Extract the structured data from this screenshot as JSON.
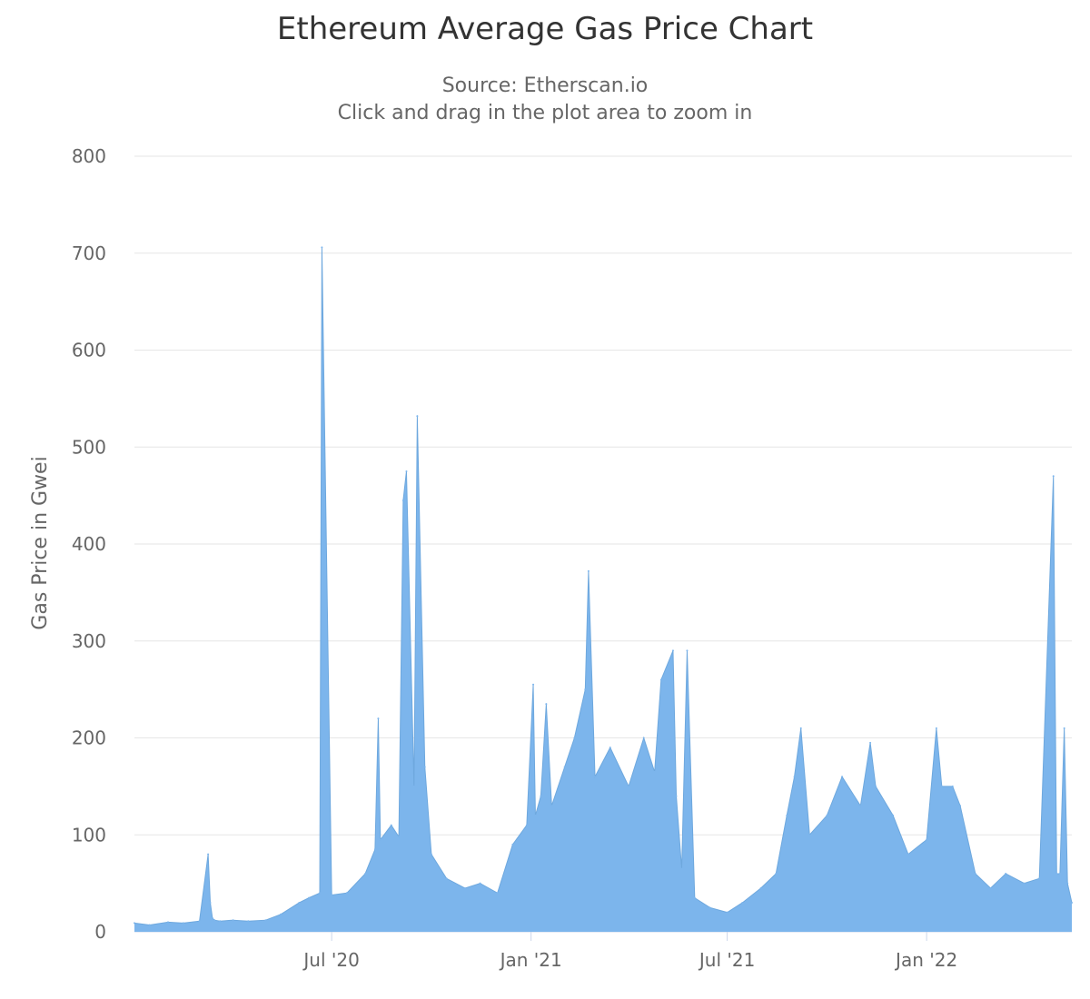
{
  "chart_data": {
    "type": "area",
    "title": "Ethereum Average Gas Price Chart",
    "subtitle": "Source: Etherscan.io",
    "subtitle2": "Click and drag in the plot area to zoom in",
    "xlabel": "",
    "ylabel": "Gas Price in Gwei",
    "ylim": [
      0,
      800
    ],
    "y_ticks": [
      0,
      100,
      200,
      300,
      400,
      500,
      600,
      700,
      800
    ],
    "x_range": [
      "2020-01-01",
      "2022-05-15"
    ],
    "x_ticks": [
      {
        "date": "2020-07-01",
        "label": "Jul '20"
      },
      {
        "date": "2021-01-01",
        "label": "Jan '21"
      },
      {
        "date": "2021-07-01",
        "label": "Jul '21"
      },
      {
        "date": "2022-01-01",
        "label": "Jan '22"
      }
    ],
    "grid": true,
    "legend": "none",
    "color": "#7cb5ec",
    "series": [
      {
        "x": [
          "2020-01-01",
          "2020-01-15",
          "2020-02-01",
          "2020-02-15",
          "2020-03-01",
          "2020-03-09",
          "2020-03-11",
          "2020-03-13",
          "2020-03-15",
          "2020-03-20",
          "2020-04-01",
          "2020-04-15",
          "2020-05-01",
          "2020-05-15",
          "2020-06-01",
          "2020-06-10",
          "2020-06-20",
          "2020-06-22",
          "2020-07-01",
          "2020-07-15",
          "2020-08-01",
          "2020-08-10",
          "2020-08-13",
          "2020-08-15",
          "2020-08-25",
          "2020-09-01",
          "2020-09-05",
          "2020-09-08",
          "2020-09-15",
          "2020-09-18",
          "2020-09-25",
          "2020-10-01",
          "2020-10-15",
          "2020-11-01",
          "2020-11-15",
          "2020-12-01",
          "2020-12-15",
          "2020-12-28",
          "2021-01-03",
          "2021-01-05",
          "2021-01-10",
          "2021-01-15",
          "2021-01-20",
          "2021-02-01",
          "2021-02-10",
          "2021-02-20",
          "2021-02-23",
          "2021-03-01",
          "2021-03-15",
          "2021-04-01",
          "2021-04-15",
          "2021-04-25",
          "2021-05-01",
          "2021-05-12",
          "2021-05-15",
          "2021-05-20",
          "2021-05-25",
          "2021-06-01",
          "2021-06-15",
          "2021-07-01",
          "2021-07-15",
          "2021-08-01",
          "2021-08-15",
          "2021-08-25",
          "2021-09-01",
          "2021-09-07",
          "2021-09-15",
          "2021-10-01",
          "2021-10-15",
          "2021-11-01",
          "2021-11-10",
          "2021-11-15",
          "2021-12-01",
          "2021-12-15",
          "2022-01-01",
          "2022-01-10",
          "2022-01-15",
          "2022-01-25",
          "2022-02-01",
          "2022-02-15",
          "2022-03-01",
          "2022-03-15",
          "2022-04-01",
          "2022-04-15",
          "2022-04-28",
          "2022-05-01",
          "2022-05-04",
          "2022-05-08",
          "2022-05-11",
          "2022-05-15"
        ],
        "y": [
          9,
          7,
          10,
          9,
          11,
          80,
          30,
          14,
          12,
          11,
          12,
          11,
          12,
          18,
          30,
          35,
          40,
          706,
          38,
          40,
          60,
          85,
          220,
          95,
          110,
          98,
          445,
          475,
          150,
          532,
          170,
          80,
          55,
          45,
          50,
          40,
          90,
          110,
          255,
          120,
          140,
          235,
          130,
          170,
          200,
          250,
          372,
          160,
          190,
          150,
          200,
          165,
          260,
          290,
          140,
          65,
          290,
          35,
          25,
          20,
          30,
          45,
          60,
          120,
          160,
          210,
          100,
          120,
          160,
          130,
          195,
          150,
          120,
          80,
          95,
          210,
          150,
          150,
          130,
          60,
          45,
          60,
          50,
          55,
          470,
          60,
          60,
          210,
          50,
          30
        ]
      }
    ]
  }
}
